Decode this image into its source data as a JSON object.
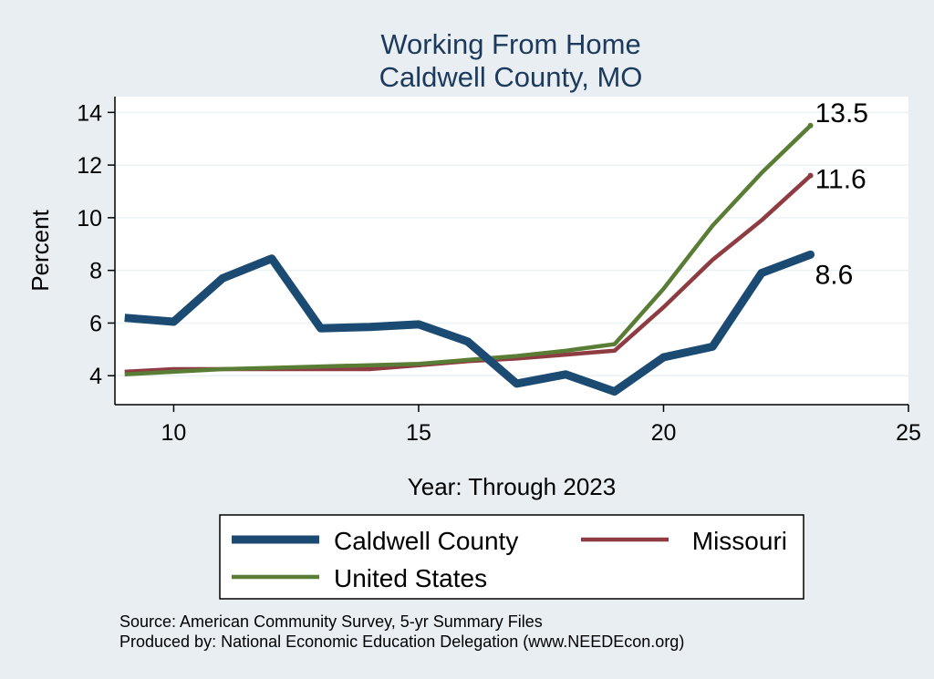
{
  "chart_data": {
    "type": "line",
    "title": "Working From Home",
    "subtitle": "Caldwell County, MO",
    "xlabel": "Year: Through 2023",
    "ylabel": "Percent",
    "xlim": [
      8.8,
      25
    ],
    "ylim": [
      2.9,
      14.6
    ],
    "x_ticks": [
      10,
      15,
      20,
      25
    ],
    "y_ticks": [
      4,
      6,
      8,
      10,
      12,
      14
    ],
    "grid": true,
    "legend_position": "bottom",
    "x": [
      9,
      10,
      11,
      12,
      13,
      14,
      15,
      16,
      17,
      18,
      19,
      20,
      21,
      22,
      23
    ],
    "series": [
      {
        "name": "Caldwell County",
        "color": "#1b4a72",
        "values": [
          6.2,
          6.05,
          7.7,
          8.45,
          5.8,
          5.85,
          5.95,
          5.3,
          3.7,
          4.05,
          3.4,
          4.7,
          5.1,
          7.9,
          8.6
        ],
        "end_label": "8.6"
      },
      {
        "name": "Missouri",
        "color": "#8e3b42",
        "values": [
          4.15,
          4.25,
          4.25,
          4.25,
          4.25,
          4.25,
          4.4,
          4.55,
          4.65,
          4.8,
          4.95,
          6.6,
          8.4,
          9.9,
          11.6
        ],
        "end_label": "11.6"
      },
      {
        "name": "United States",
        "color": "#5a7d36",
        "values": [
          4.05,
          4.15,
          4.25,
          4.3,
          4.35,
          4.4,
          4.45,
          4.6,
          4.75,
          4.95,
          5.2,
          7.3,
          9.7,
          11.7,
          13.5
        ],
        "end_label": "13.5"
      }
    ]
  },
  "notes": {
    "source": "Source: American Community Survey, 5-yr Summary Files",
    "produced_by": "Produced by: National Economic Education Delegation (www.NEEDEcon.org)"
  }
}
